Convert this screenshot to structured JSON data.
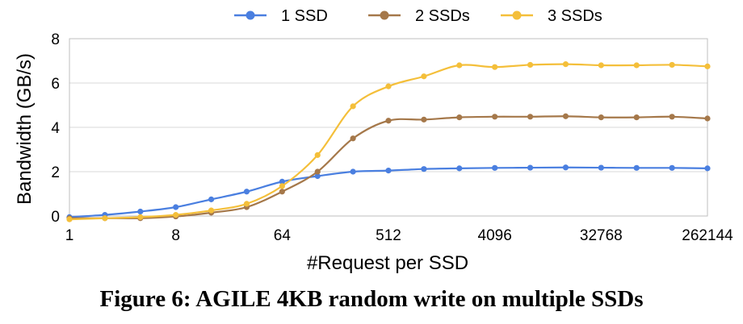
{
  "caption": "Figure 6: AGILE 4KB random write on multiple SSDs",
  "chart_data": {
    "type": "line",
    "title": "",
    "xlabel": "#Request per SSD",
    "ylabel": "Bandwidth (GB/s)",
    "x_scale": "log2",
    "x_tick_labels": [
      "1",
      "8",
      "64",
      "512",
      "4096",
      "32768",
      "262144"
    ],
    "x_ticks": [
      1,
      8,
      64,
      512,
      4096,
      32768,
      262144
    ],
    "y_ticks": [
      0,
      2,
      4,
      6,
      8
    ],
    "ylim": [
      0,
      8
    ],
    "xlim": [
      1,
      262144
    ],
    "grid": "horizontal",
    "legend_position": "top",
    "x": [
      1,
      2,
      4,
      8,
      16,
      32,
      64,
      128,
      256,
      512,
      1024,
      2048,
      4096,
      8192,
      16384,
      32768,
      65536,
      131072,
      262144
    ],
    "series": [
      {
        "name": "1 SSD",
        "color": "#4A7FE0",
        "values": [
          -0.05,
          0.05,
          0.2,
          0.4,
          0.75,
          1.1,
          1.55,
          1.8,
          2.0,
          2.05,
          2.12,
          2.15,
          2.17,
          2.18,
          2.19,
          2.18,
          2.17,
          2.17,
          2.15
        ]
      },
      {
        "name": "2 SSDs",
        "color": "#A5784A",
        "values": [
          -0.1,
          -0.1,
          -0.1,
          -0.02,
          0.15,
          0.4,
          1.1,
          2.0,
          3.5,
          4.3,
          4.35,
          4.45,
          4.48,
          4.48,
          4.5,
          4.45,
          4.45,
          4.48,
          4.4
        ]
      },
      {
        "name": "3 SSDs",
        "color": "#F4BF3A",
        "values": [
          -0.15,
          -0.1,
          -0.05,
          0.05,
          0.25,
          0.55,
          1.35,
          2.75,
          4.95,
          5.85,
          6.3,
          6.8,
          6.72,
          6.82,
          6.85,
          6.8,
          6.8,
          6.82,
          6.75
        ]
      }
    ]
  }
}
